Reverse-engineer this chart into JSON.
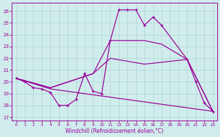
{
  "xlabel": "Windchill (Refroidissement éolien,°C)",
  "xlim": [
    -0.5,
    23.5
  ],
  "ylim": [
    16.7,
    26.7
  ],
  "yticks": [
    17,
    18,
    19,
    20,
    21,
    22,
    23,
    24,
    25,
    26
  ],
  "xticks": [
    0,
    1,
    2,
    3,
    4,
    5,
    6,
    7,
    8,
    9,
    10,
    11,
    12,
    13,
    14,
    15,
    16,
    17,
    18,
    19,
    20,
    21,
    22,
    23
  ],
  "line_color": "#990099",
  "bg_color": "#d0ecec",
  "grid_color": "#b0d4d4",
  "main_line": {
    "x": [
      0,
      1,
      2,
      3,
      4,
      5,
      6,
      7,
      8,
      9,
      10,
      11,
      12,
      13,
      14,
      15,
      16,
      17,
      20,
      21,
      22,
      23
    ],
    "y": [
      20.3,
      20.0,
      19.5,
      19.4,
      19.1,
      18.0,
      18.0,
      18.5,
      20.7,
      19.2,
      19.0,
      23.5,
      26.1,
      26.1,
      26.1,
      24.8,
      25.5,
      24.8,
      21.9,
      20.0,
      18.2,
      17.5
    ]
  },
  "straight_lines": [
    {
      "x": [
        0,
        4,
        9,
        11,
        15,
        17,
        20,
        23
      ],
      "y": [
        20.3,
        19.5,
        20.7,
        23.5,
        23.5,
        23.2,
        21.9,
        17.5
      ]
    },
    {
      "x": [
        0,
        4,
        9,
        11,
        15,
        20,
        23
      ],
      "y": [
        20.3,
        19.5,
        20.7,
        22.0,
        21.5,
        21.9,
        17.5
      ]
    },
    {
      "x": [
        0,
        4,
        23
      ],
      "y": [
        20.3,
        19.4,
        17.5
      ]
    }
  ]
}
